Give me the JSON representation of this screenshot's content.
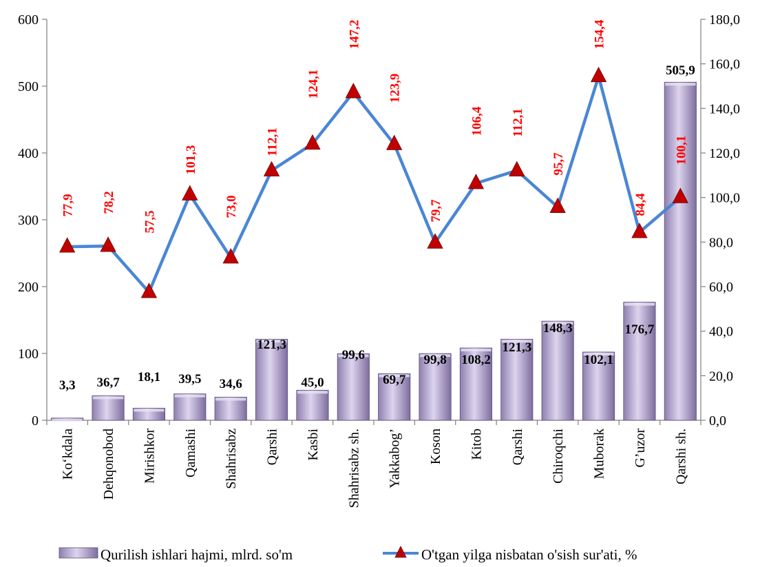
{
  "chart_data": {
    "type": "bar",
    "categories": [
      "Ko‘kdala",
      "Dehqonobod",
      "Mirishkor",
      "Qamashi",
      "Shahrisabz",
      "Qarshi",
      "Kasbi",
      "Shahrisabz sh.",
      "Yakkabog’",
      "Koson",
      "Kitob",
      "Qarshi",
      "Chiroqchi",
      "Muborak",
      "G’uzor",
      "Qarshi sh."
    ],
    "series": [
      {
        "name": "Qurilish ishlari hajmi, mlrd. so'm",
        "type": "bar",
        "axis": "left",
        "values": [
          3.3,
          36.7,
          18.1,
          39.5,
          34.6,
          121.3,
          45.0,
          99.6,
          69.7,
          99.8,
          108.2,
          121.3,
          148.3,
          102.1,
          176.7,
          505.9
        ],
        "labels": [
          "3,3",
          "36,7",
          "18,1",
          "39,5",
          "34,6",
          "121,3",
          "45,0",
          "99,6",
          "69,7",
          "99,8",
          "108,2",
          "121,3",
          "148,3",
          "102,1",
          "176,7",
          "505,9"
        ],
        "color": "#b7a7d4"
      },
      {
        "name": "O'tgan yilga nisbatan o'sish sur'ati, %",
        "type": "line",
        "axis": "right",
        "values": [
          77.9,
          78.2,
          57.5,
          101.3,
          73.0,
          112.1,
          124.1,
          147.2,
          123.9,
          79.7,
          106.4,
          112.1,
          95.7,
          154.4,
          84.4,
          100.1
        ],
        "labels": [
          "77,9",
          "78,2",
          "57,5",
          "101,3",
          "73,0",
          "112,1",
          "124,1",
          "147,2",
          "123,9",
          "79,7",
          "106,4",
          "112,1",
          "95,7",
          "154,4",
          "84,4",
          "100,1"
        ],
        "color": "#4a86d4",
        "marker_color": "#c00000",
        "label_color": "#ff0000"
      }
    ],
    "y_left": {
      "min": 0,
      "max": 600,
      "step": 100,
      "ticks": [
        "0",
        "100",
        "200",
        "300",
        "400",
        "500",
        "600"
      ]
    },
    "y_right": {
      "min": 0,
      "max": 180,
      "step": 20,
      "ticks": [
        "0,0",
        "20,0",
        "40,0",
        "60,0",
        "80,0",
        "100,0",
        "120,0",
        "140,0",
        "160,0",
        "180,0"
      ]
    },
    "legend_position": "bottom",
    "grid": false
  }
}
